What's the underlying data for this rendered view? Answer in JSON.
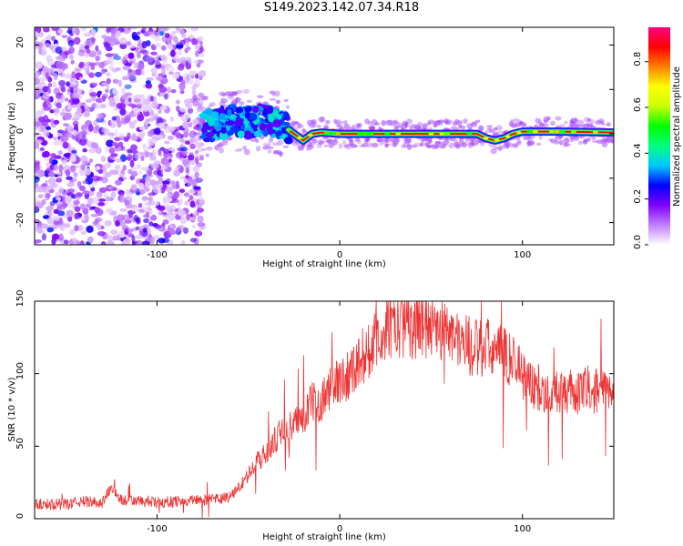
{
  "title": "S149.2023.142.07.34.R18",
  "chart_data": [
    {
      "type": "heatmap",
      "xlabel": "Height of straight line (km)",
      "ylabel": "Frequency (Hz)",
      "xlim": [
        -167,
        150
      ],
      "ylim": [
        -25,
        24
      ],
      "xticks": [
        -100,
        0,
        100
      ],
      "yticks": [
        -20,
        -10,
        0,
        10,
        20
      ],
      "grid": false,
      "colorbar": {
        "label": "Normalized spectral amplitude",
        "range": [
          0,
          0.95
        ],
        "ticks": [
          "0.0",
          "0.2",
          "0.4",
          "0.6",
          "0.8"
        ],
        "colormap": [
          "#ffffff",
          "#c080ff",
          "#8000ff",
          "#0000ff",
          "#00c8ff",
          "#00ff80",
          "#00ff00",
          "#c8ff00",
          "#ffff00",
          "#ff8000",
          "#ff0000",
          "#ff0080"
        ]
      },
      "regions": [
        {
          "x_range": [
            -167,
            -75
          ],
          "freq_range": [
            -25,
            24
          ],
          "description_level": 0.1
        },
        {
          "x_range": [
            -75,
            -28
          ],
          "freq_center": 2,
          "freq_halfwidth": 4,
          "peak_level": 0.35
        },
        {
          "x_range": [
            -28,
            150
          ],
          "freq_center": 0,
          "freq_halfwidth": 1,
          "peak_level": 0.9
        }
      ],
      "signal_frequency": {
        "x": [
          -75,
          -60,
          -50,
          -40,
          -30,
          -20,
          -15,
          -10,
          0,
          20,
          40,
          60,
          75,
          80,
          85,
          90,
          95,
          100,
          120,
          150
        ],
        "freq": [
          1.5,
          3,
          2.5,
          3,
          1.5,
          -1.5,
          0,
          0.3,
          0,
          0,
          0,
          0,
          0,
          -1,
          -1.5,
          -1,
          0,
          0.5,
          0.5,
          0.3
        ]
      }
    },
    {
      "type": "line",
      "xlabel": "Height of straight line (km)",
      "ylabel": "SNR (10 * v/v)",
      "xlim": [
        -167,
        150
      ],
      "ylim": [
        0,
        150
      ],
      "xticks": [
        -100,
        0,
        100
      ],
      "yticks": [
        0,
        50,
        100,
        150
      ],
      "grid": false,
      "series": [
        {
          "color": "#ee3333",
          "x": [
            -167,
            -150,
            -140,
            -130,
            -125,
            -120,
            -110,
            -100,
            -90,
            -80,
            -70,
            -60,
            -55,
            -50,
            -45,
            -40,
            -35,
            -30,
            -25,
            -20,
            -15,
            -10,
            -5,
            0,
            5,
            10,
            15,
            20,
            25,
            30,
            35,
            40,
            45,
            50,
            55,
            60,
            65,
            70,
            75,
            80,
            85,
            90,
            95,
            100,
            105,
            110,
            115,
            120,
            125,
            130,
            135,
            140,
            145,
            150
          ],
          "y": [
            10,
            10,
            12,
            11,
            22,
            13,
            12,
            11,
            12,
            13,
            13,
            15,
            22,
            30,
            40,
            45,
            55,
            62,
            65,
            70,
            80,
            82,
            90,
            95,
            100,
            108,
            115,
            122,
            130,
            133,
            135,
            133,
            135,
            134,
            132,
            128,
            124,
            120,
            117,
            118,
            115,
            113,
            110,
            100,
            92,
            90,
            85,
            87,
            88,
            85,
            90,
            88,
            87,
            85
          ]
        }
      ]
    }
  ]
}
